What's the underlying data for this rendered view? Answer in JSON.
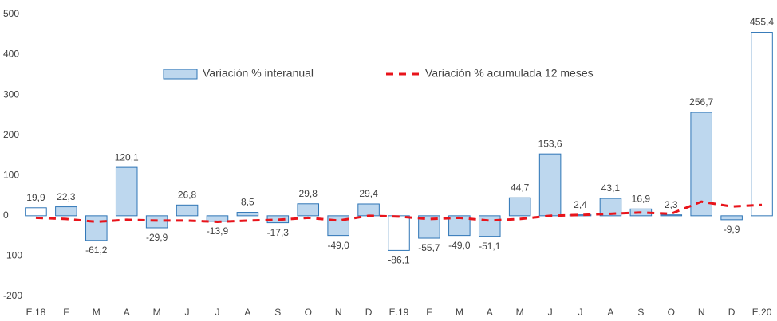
{
  "chart_data": {
    "type": "combo",
    "categories": [
      "E.18",
      "F",
      "M",
      "A",
      "M",
      "J",
      "J",
      "A",
      "S",
      "O",
      "N",
      "D",
      "E.19",
      "F",
      "M",
      "A",
      "M",
      "J",
      "J",
      "A",
      "S",
      "O",
      "N",
      "D",
      "E.20"
    ],
    "series": [
      {
        "name": "Variación % interanual",
        "type": "bar",
        "color": "#bdd7ee",
        "stroke": "#2e75b6",
        "colors": [
          "#ffffff",
          "#bdd7ee",
          "#bdd7ee",
          "#bdd7ee",
          "#bdd7ee",
          "#bdd7ee",
          "#bdd7ee",
          "#bdd7ee",
          "#bdd7ee",
          "#bdd7ee",
          "#bdd7ee",
          "#bdd7ee",
          "#ffffff",
          "#bdd7ee",
          "#bdd7ee",
          "#bdd7ee",
          "#bdd7ee",
          "#bdd7ee",
          "#bdd7ee",
          "#bdd7ee",
          "#bdd7ee",
          "#bdd7ee",
          "#bdd7ee",
          "#bdd7ee",
          "#ffffff"
        ],
        "values": [
          19.9,
          22.3,
          -61.2,
          120.1,
          -29.9,
          26.8,
          -13.9,
          8.5,
          -17.3,
          29.8,
          -49.0,
          29.4,
          -86.1,
          -55.7,
          -49.0,
          -51.1,
          44.7,
          153.6,
          2.4,
          43.1,
          16.9,
          2.3,
          256.7,
          -9.9,
          455.4
        ],
        "value_labels": [
          "19,9",
          "22,3",
          "-61,2",
          "120,1",
          "-29,9",
          "26,8",
          "-13,9",
          "8,5",
          "-17,3",
          "29,8",
          "-49,0",
          "29,4",
          "-86,1",
          "-55,7",
          "-49,0",
          "-51,1",
          "44,7",
          "153,6",
          "2,4",
          "43,1",
          "16,9",
          "2,3",
          "256,7",
          "-9,9",
          "455,4"
        ]
      },
      {
        "name": "Variación % acumulada 12 meses",
        "type": "line",
        "color": "#e8141b",
        "dashed": true,
        "values": [
          -5,
          -8,
          -15,
          -10,
          -12,
          -12,
          -15,
          -12,
          -10,
          -5,
          -12,
          0,
          -2,
          -8,
          -5,
          -12,
          -8,
          0,
          2,
          5,
          8,
          5,
          35,
          23,
          27
        ]
      }
    ],
    "ylim": [
      -200,
      500
    ],
    "yticks": [
      -200,
      -100,
      0,
      100,
      200,
      300,
      400,
      500
    ],
    "grid": false
  }
}
